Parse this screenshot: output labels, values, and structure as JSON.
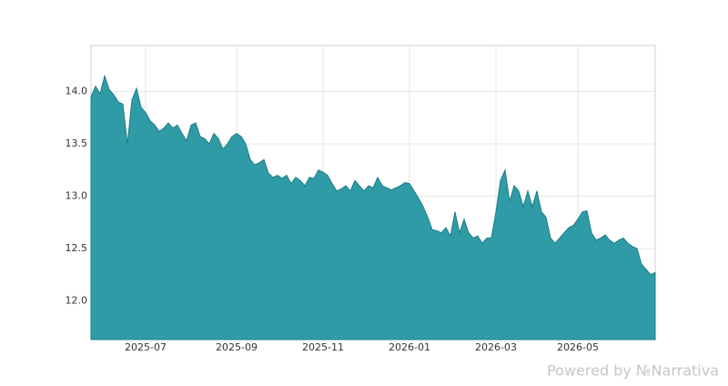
{
  "chart_data": {
    "type": "area",
    "categories": [
      null,
      null,
      null,
      null,
      null,
      null,
      null,
      null,
      null,
      null,
      null,
      null,
      "2025-07",
      null,
      null,
      null,
      null,
      null,
      null,
      null,
      null,
      null,
      null,
      null,
      null,
      null,
      null,
      null,
      null,
      null,
      null,
      null,
      "2025-09",
      null,
      null,
      null,
      null,
      null,
      null,
      null,
      null,
      null,
      null,
      null,
      null,
      null,
      null,
      null,
      null,
      null,
      null,
      "2025-11",
      null,
      null,
      null,
      null,
      null,
      null,
      null,
      null,
      null,
      null,
      null,
      null,
      null,
      null,
      null,
      null,
      null,
      null,
      "2026-01",
      null,
      null,
      null,
      null,
      null,
      null,
      null,
      null,
      null,
      null,
      null,
      null,
      null,
      null,
      null,
      null,
      null,
      null,
      "2026-03",
      null,
      null,
      null,
      null,
      null,
      null,
      null,
      null,
      null,
      null,
      null,
      null,
      null,
      null,
      null,
      null,
      null,
      "2026-05",
      null,
      null,
      null,
      null,
      null,
      null,
      null,
      null,
      null,
      null,
      null,
      null,
      null,
      null,
      null,
      null,
      null
    ],
    "values": [
      13.95,
      14.05,
      13.98,
      14.15,
      14.02,
      13.97,
      13.9,
      13.88,
      13.5,
      13.92,
      14.03,
      13.85,
      13.8,
      13.72,
      13.68,
      13.62,
      13.65,
      13.7,
      13.65,
      13.68,
      13.6,
      13.53,
      13.68,
      13.7,
      13.57,
      13.55,
      13.5,
      13.6,
      13.55,
      13.45,
      13.5,
      13.57,
      13.6,
      13.57,
      13.5,
      13.35,
      13.3,
      13.32,
      13.35,
      13.22,
      13.18,
      13.2,
      13.17,
      13.2,
      13.12,
      13.18,
      13.15,
      13.1,
      13.18,
      13.17,
      13.25,
      13.23,
      13.2,
      13.12,
      13.05,
      13.07,
      13.1,
      13.05,
      13.15,
      13.1,
      13.05,
      13.1,
      13.08,
      13.18,
      13.1,
      13.08,
      13.06,
      13.08,
      13.1,
      13.13,
      13.12,
      13.05,
      12.98,
      12.9,
      12.8,
      12.68,
      12.67,
      12.65,
      12.7,
      12.62,
      12.85,
      12.65,
      12.78,
      12.65,
      12.6,
      12.62,
      12.55,
      12.6,
      12.6,
      12.85,
      13.15,
      13.25,
      12.95,
      13.1,
      13.05,
      12.9,
      13.05,
      12.9,
      13.05,
      12.85,
      12.8,
      12.6,
      12.55,
      12.6,
      12.65,
      12.7,
      12.72,
      12.78,
      12.85,
      12.86,
      12.65,
      12.58,
      12.6,
      12.63,
      12.58,
      12.55,
      12.58,
      12.6,
      12.55,
      12.52,
      12.5,
      12.35,
      12.3,
      12.25,
      12.27
    ],
    "color": "#2f9ba6",
    "line_color": "#1d7c88",
    "ylim": [
      11.63,
      14.44
    ],
    "yticks": [
      {
        "value": 12,
        "label": "12.0"
      },
      12.5,
      {
        "value": 13,
        "label": "13.0"
      },
      13.5,
      {
        "value": 14,
        "label": "14.0"
      }
    ],
    "grid": true,
    "watermark": "Powered by №Narrativa"
  }
}
